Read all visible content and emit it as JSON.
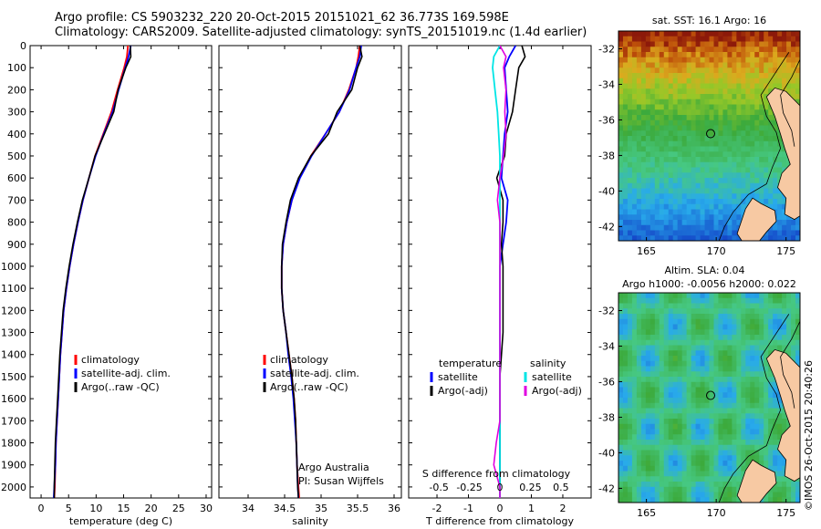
{
  "titles": {
    "line1": "Argo profile: CS 5903232_220 20-Oct-2015 20151021_62 36.773S 169.598E",
    "line2": "Climatology: CARS2009. Satellite-adjusted climatology: synTS_20151019.nc (1.4d earlier)"
  },
  "copyright": "©IMOS 26-Oct-2015 20:40:26",
  "colors": {
    "climatology": "#ff0000",
    "satellite": "#0000ff",
    "argo": "#000000",
    "sat_salinity": "#00e5e5",
    "argo_salinity": "#e000e0",
    "land": "#f7c9a3"
  },
  "chart_data": [
    {
      "type": "line",
      "id": "temperature",
      "xlabel": "temperature (deg C)",
      "xlim": [
        -2,
        31
      ],
      "xticks": [
        "0",
        "5",
        "10",
        "15",
        "20",
        "25",
        "30"
      ],
      "ylim": [
        0,
        2050
      ],
      "yticks": [
        "0",
        "100",
        "200",
        "300",
        "400",
        "500",
        "600",
        "700",
        "800",
        "900",
        "1000",
        "1100",
        "1200",
        "1300",
        "1400",
        "1500",
        "1600",
        "1700",
        "1800",
        "1900",
        "2000"
      ],
      "depth": [
        0,
        50,
        100,
        200,
        300,
        400,
        500,
        600,
        700,
        800,
        900,
        1000,
        1100,
        1200,
        1300,
        1400,
        1500,
        1600,
        1700,
        1800,
        1900,
        2000,
        2050
      ],
      "series": [
        {
          "name": "climatology",
          "color": "#ff0000",
          "values": [
            15.8,
            15.6,
            15.1,
            13.9,
            12.8,
            11.3,
            9.8,
            8.7,
            7.6,
            6.7,
            5.9,
            5.2,
            4.6,
            4.1,
            3.8,
            3.5,
            3.3,
            3.1,
            2.9,
            2.7,
            2.6,
            2.5,
            2.4
          ]
        },
        {
          "name": "satellite-adj. clim.",
          "color": "#0000ff",
          "values": [
            16.3,
            15.9,
            15.3,
            14.1,
            13.0,
            11.4,
            9.9,
            8.7,
            7.6,
            6.7,
            5.9,
            5.2,
            4.6,
            4.1,
            3.8,
            3.5,
            3.3,
            3.1,
            2.9,
            2.7,
            2.6,
            2.4,
            2.3
          ]
        },
        {
          "name": "Argo(..raw -QC)",
          "color": "#000000",
          "values": [
            16.2,
            16.3,
            15.4,
            14.0,
            13.2,
            11.5,
            9.8,
            8.7,
            7.5,
            6.6,
            5.8,
            5.1,
            4.5,
            4.0,
            3.7,
            3.4,
            3.2,
            3.0,
            2.8,
            2.6,
            2.5,
            2.4,
            2.4
          ]
        }
      ],
      "legend": [
        "climatology",
        "satellite-adj. clim.",
        "Argo(..raw -QC)"
      ]
    },
    {
      "type": "line",
      "id": "salinity",
      "xlabel": "salinity",
      "xlim": [
        33.6,
        36.1
      ],
      "xticks": [
        "34",
        "34.5",
        "35",
        "35.5",
        "36"
      ],
      "ylim": [
        0,
        2050
      ],
      "depth": [
        0,
        50,
        100,
        200,
        300,
        400,
        500,
        600,
        700,
        800,
        900,
        1000,
        1100,
        1200,
        1300,
        1400,
        1500,
        1600,
        1700,
        1800,
        1900,
        2000,
        2050
      ],
      "series": [
        {
          "name": "climatology",
          "color": "#ff0000",
          "values": [
            35.53,
            35.51,
            35.48,
            35.38,
            35.25,
            35.06,
            34.86,
            34.7,
            34.6,
            34.53,
            34.48,
            34.46,
            34.46,
            34.48,
            34.52,
            34.56,
            34.6,
            34.63,
            34.65,
            34.66,
            34.67,
            34.69,
            34.7
          ]
        },
        {
          "name": "satellite-adj. clim.",
          "color": "#0000ff",
          "values": [
            35.55,
            35.53,
            35.48,
            35.39,
            35.25,
            35.06,
            34.87,
            34.71,
            34.6,
            34.53,
            34.48,
            34.46,
            34.46,
            34.48,
            34.52,
            34.55,
            34.59,
            34.62,
            34.64,
            34.66,
            34.67,
            34.68,
            34.69
          ]
        },
        {
          "name": "Argo(..raw -QC)",
          "color": "#000000",
          "values": [
            35.53,
            35.56,
            35.5,
            35.42,
            35.22,
            35.1,
            34.86,
            34.69,
            34.58,
            34.52,
            34.47,
            34.46,
            34.46,
            34.48,
            34.52,
            34.56,
            34.6,
            34.63,
            34.65,
            34.66,
            34.67,
            34.68,
            34.69
          ]
        }
      ],
      "legend": [
        "climatology",
        "satellite-adj. clim.",
        "Argo(..raw -QC)"
      ],
      "note_line1": "Argo Australia",
      "note_line2": "PI: Susan Wijffels"
    },
    {
      "type": "line",
      "id": "difference",
      "xlabel": "T difference from climatology",
      "xlabel_top": "S difference from climatology",
      "xlim": [
        -2.9,
        2.9
      ],
      "xticks": [
        "-2",
        "-1",
        "0",
        "1",
        "2"
      ],
      "sticks": [
        "-0.5",
        "-0.25",
        "0",
        "0.25",
        "0.5"
      ],
      "ylim": [
        0,
        2050
      ],
      "depth": [
        0,
        50,
        100,
        200,
        300,
        400,
        500,
        600,
        700,
        800,
        900,
        1000,
        1100,
        1200,
        1300,
        1400,
        1500,
        1600,
        1700,
        1800,
        1900,
        2000,
        2050
      ],
      "series": [
        {
          "name": "satellite",
          "group": "temperature",
          "color": "#0000ff",
          "values": [
            0.5,
            0.3,
            0.15,
            0.2,
            0.25,
            0.15,
            0.1,
            0.05,
            0.25,
            0.2,
            0.1,
            0.0,
            0.0,
            0.0,
            0.0,
            0.0,
            0.0,
            0.0,
            0.0,
            0.0,
            0.0,
            0.0,
            0.0
          ]
        },
        {
          "name": "Argo(-adj)",
          "group": "temperature",
          "color": "#000000",
          "values": [
            0.7,
            0.8,
            0.6,
            0.5,
            0.4,
            0.2,
            0.15,
            -0.1,
            0.1,
            0.1,
            0.05,
            0.1,
            0.1,
            0.1,
            0.1,
            0.05,
            0.0,
            0.0,
            0.0,
            0.0,
            0.0,
            0.0,
            0.0
          ]
        },
        {
          "name": "satellite",
          "group": "salinity",
          "color": "#00e5e5",
          "values": [
            0.0,
            -0.05,
            -0.06,
            -0.04,
            -0.02,
            -0.01,
            0.0,
            0.0,
            0.0,
            0.0,
            0.0,
            0.0,
            0.0,
            0.0,
            0.0,
            0.0,
            0.0,
            0.0,
            0.0,
            0.0,
            0.0,
            0.0,
            0.0
          ]
        },
        {
          "name": "Argo(-adj)",
          "group": "salinity",
          "color": "#e000e0",
          "values": [
            0.0,
            0.05,
            0.03,
            0.05,
            0.04,
            0.05,
            0.03,
            0.0,
            -0.02,
            0.0,
            0.0,
            0.0,
            0.0,
            0.0,
            0.0,
            0.0,
            0.0,
            0.0,
            0.0,
            -0.03,
            -0.05,
            0.0,
            0.0
          ]
        }
      ],
      "legend_headers": [
        "temperature",
        "salinity"
      ],
      "legend_temperature": [
        "satellite",
        "Argo(-adj)"
      ],
      "legend_salinity": [
        "satellite",
        "Argo(-adj)"
      ]
    },
    {
      "type": "heatmap",
      "id": "sst_map",
      "title": "sat. SST: 16.1  Argo: 16",
      "xlim": [
        163,
        176
      ],
      "ylim": [
        -42.8,
        -31
      ],
      "xticks": [
        "165",
        "170",
        "175"
      ],
      "yticks": [
        "-32",
        "-34",
        "-36",
        "-38",
        "-40",
        "-42"
      ],
      "argo_position": {
        "lon": 169.598,
        "lat": -36.773
      }
    },
    {
      "type": "heatmap",
      "id": "sla_map",
      "title_line1": "Altim. SLA: 0.04",
      "title_line2": "Argo h1000: -0.0056 h2000: 0.022",
      "xlim": [
        163,
        176
      ],
      "ylim": [
        -42.8,
        -31
      ],
      "xticks": [
        "165",
        "170",
        "175"
      ],
      "yticks": [
        "-32",
        "-34",
        "-36",
        "-38",
        "-40",
        "-42"
      ],
      "argo_position": {
        "lon": 169.598,
        "lat": -36.773
      }
    }
  ]
}
